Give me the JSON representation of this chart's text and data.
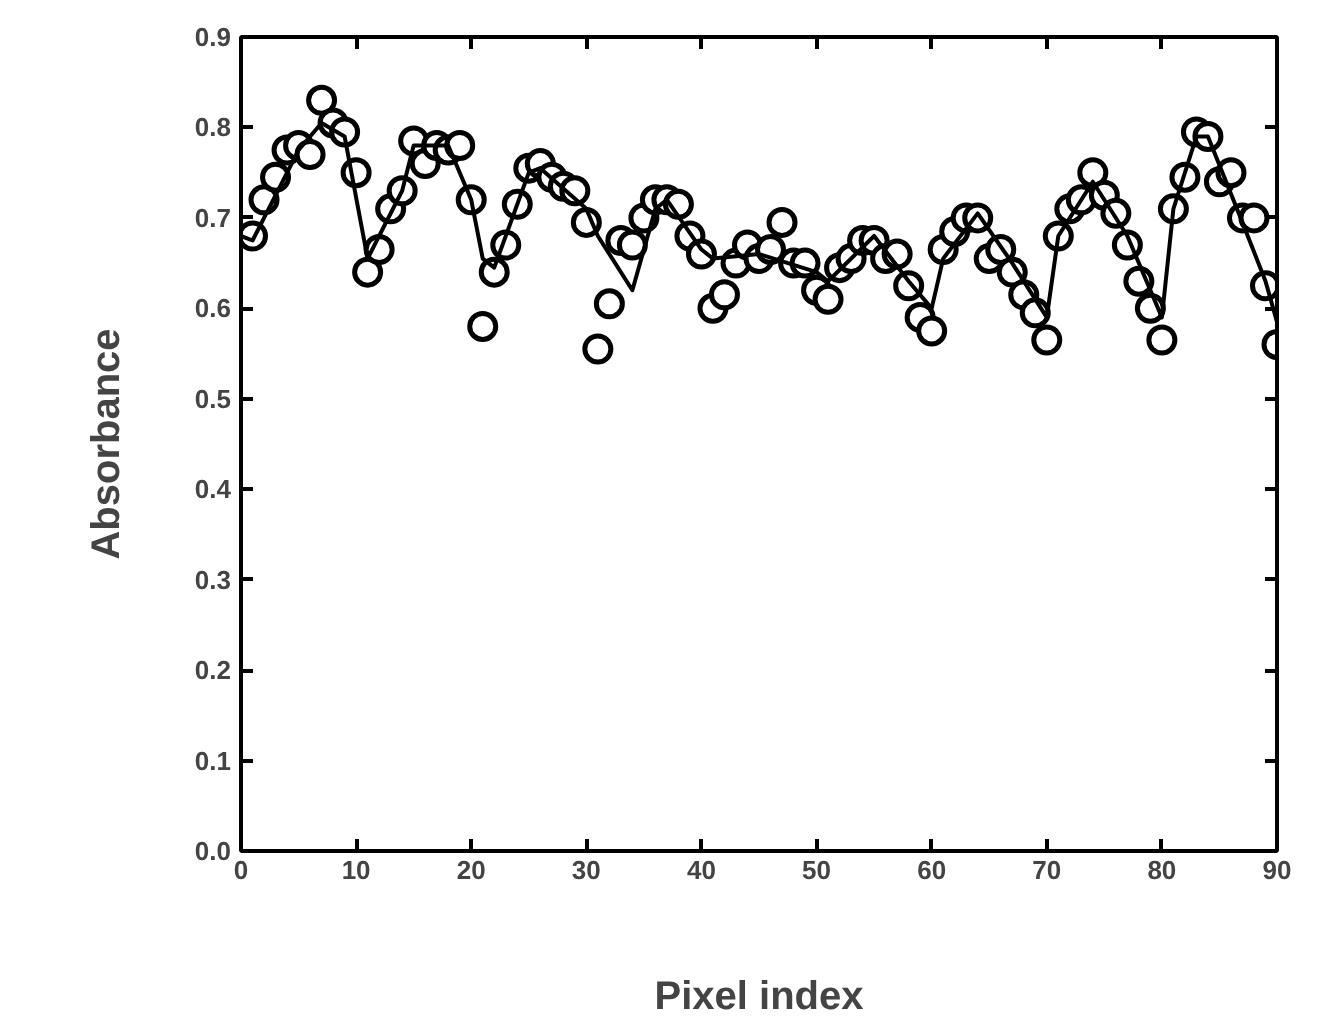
{
  "chart_data": {
    "type": "scatter",
    "xlabel": "Pixel index",
    "ylabel": "Absorbance",
    "xlim": [
      0,
      90
    ],
    "ylim": [
      0,
      0.9
    ],
    "xticks": [
      0,
      10,
      20,
      30,
      40,
      50,
      60,
      70,
      80,
      90
    ],
    "yticks": [
      {
        "value": 0,
        "label": "0.0"
      },
      0.1,
      0.2,
      0.3,
      0.4,
      0.5,
      0.6,
      0.7,
      0.8,
      0.9
    ],
    "grid": false,
    "series": [
      {
        "marker": "circle",
        "color": "#000000",
        "x": [
          1,
          2,
          3,
          4,
          5,
          6,
          7,
          8,
          9,
          10,
          11,
          12,
          13,
          14,
          15,
          16,
          17,
          18,
          19,
          20,
          21,
          22,
          23,
          24,
          25,
          26,
          27,
          28,
          29,
          30,
          31,
          32,
          33,
          34,
          35,
          36,
          37,
          38,
          39,
          40,
          41,
          42,
          43,
          44,
          45,
          46,
          47,
          48,
          49,
          50,
          51,
          52,
          53,
          54,
          55,
          56,
          57,
          58,
          59,
          60,
          61,
          62,
          63,
          64,
          65,
          66,
          67,
          68,
          69,
          70,
          71,
          72,
          73,
          74,
          75,
          76,
          77,
          78,
          79,
          80,
          81,
          82,
          83,
          84,
          85,
          86,
          87,
          88,
          89,
          90
        ],
        "values": [
          0.68,
          0.72,
          0.745,
          0.775,
          0.78,
          0.77,
          0.83,
          0.805,
          0.795,
          0.75,
          0.64,
          0.665,
          0.71,
          0.73,
          0.785,
          0.76,
          0.78,
          0.775,
          0.78,
          0.72,
          0.58,
          0.64,
          0.67,
          0.715,
          0.755,
          0.76,
          0.745,
          0.735,
          0.73,
          0.695,
          0.555,
          0.605,
          0.675,
          0.67,
          0.7,
          0.72,
          0.72,
          0.715,
          0.68,
          0.66,
          0.6,
          0.615,
          0.65,
          0.67,
          0.655,
          0.665,
          0.695,
          0.65,
          0.65,
          0.62,
          0.61,
          0.645,
          0.655,
          0.675,
          0.675,
          0.655,
          0.66,
          0.625,
          0.59,
          0.575,
          0.665,
          0.685,
          0.7,
          0.7,
          0.655,
          0.665,
          0.64,
          0.615,
          0.595,
          0.565,
          0.68,
          0.71,
          0.72,
          0.75,
          0.725,
          0.705,
          0.67,
          0.63,
          0.6,
          0.565,
          0.71,
          0.745,
          0.795,
          0.79,
          0.74,
          0.75,
          0.7,
          0.7,
          0.625,
          0.56
        ]
      },
      {
        "type": "line",
        "marker": "none",
        "line_style": "solid",
        "color": "#000000",
        "x": [
          0,
          1,
          5,
          7,
          9,
          11,
          14,
          15,
          18,
          20,
          21,
          22,
          25,
          26,
          30,
          31,
          34,
          36,
          37,
          40,
          41,
          45,
          50,
          51,
          55,
          58,
          60,
          61,
          64,
          67,
          70,
          71,
          74,
          77,
          80,
          81,
          83,
          84,
          87,
          89,
          90
        ],
        "values": [
          0.68,
          0.675,
          0.775,
          0.805,
          0.79,
          0.655,
          0.73,
          0.78,
          0.78,
          0.72,
          0.655,
          0.645,
          0.75,
          0.755,
          0.71,
          0.68,
          0.62,
          0.71,
          0.72,
          0.665,
          0.655,
          0.66,
          0.64,
          0.63,
          0.68,
          0.63,
          0.6,
          0.655,
          0.705,
          0.65,
          0.59,
          0.68,
          0.74,
          0.68,
          0.59,
          0.71,
          0.79,
          0.79,
          0.695,
          0.63,
          0.585
        ]
      }
    ]
  }
}
